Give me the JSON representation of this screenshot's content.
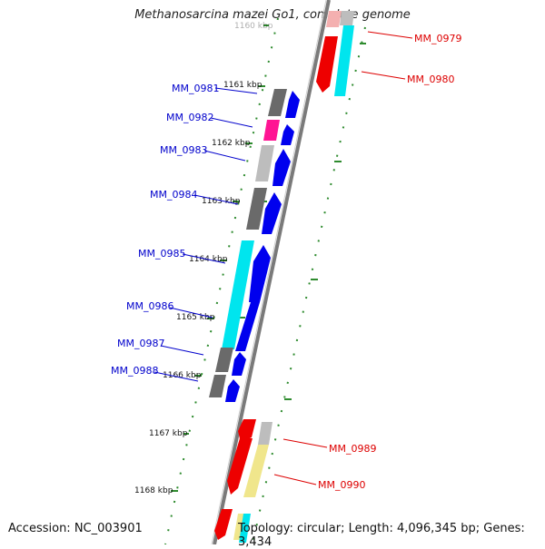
{
  "title": "Methanosarcina mazei Go1, complete genome",
  "accession": "Accession: NC_003901",
  "topology": "Topology: circular; Length: 4,096,345 bp; Genes: 3,434",
  "colors": {
    "backbone": "#7a7a7a",
    "gc_dots": "#2e8b2e",
    "label_left": "#0000cc",
    "label_right": "#dd0000",
    "forward_cds": "#0000ee",
    "reverse_cds": "#ee0000"
  },
  "kbp_ticks": [
    "1160 kbp",
    "1161 kbp",
    "1162 kbp",
    "1163 kbp",
    "1164 kbp",
    "1165 kbp",
    "1166 kbp",
    "1167 kbp",
    "1168 kbp"
  ],
  "genes_left": [
    "MM_0981",
    "MM_0982",
    "MM_0983",
    "MM_0984",
    "MM_0985",
    "MM_0986",
    "MM_0987",
    "MM_0988"
  ],
  "genes_right": [
    "MM_0979",
    "MM_0980",
    "MM_0989",
    "MM_0990"
  ]
}
